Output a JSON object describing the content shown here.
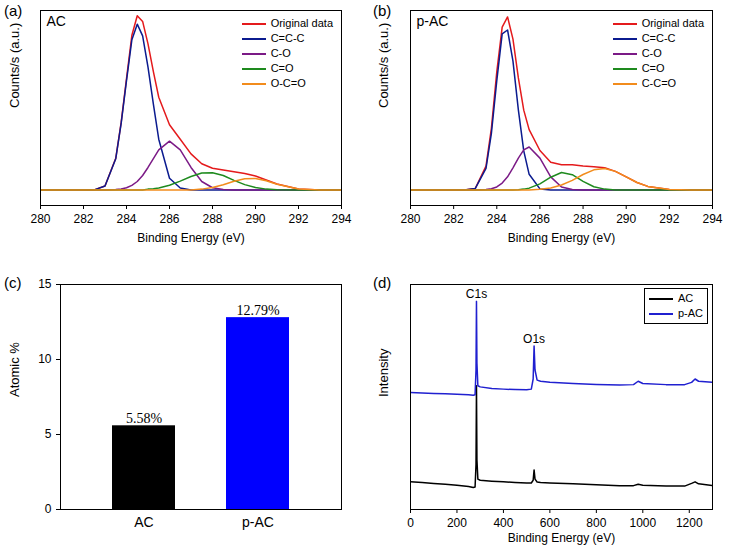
{
  "chart_data": [
    {
      "type": "line",
      "panel_label": "(a)",
      "title": "AC",
      "x_label": "Binding Energy (eV)",
      "y_label": "Counts/s (a.u.)",
      "x": [
        280,
        281,
        282,
        282.5,
        283,
        283.5,
        283.75,
        284,
        284.25,
        284.5,
        284.75,
        285,
        285.25,
        285.5,
        286,
        286.5,
        287,
        287.5,
        288,
        288.5,
        289,
        289.5,
        290,
        290.5,
        291,
        292,
        293,
        294
      ],
      "series": [
        {
          "name": "Original data",
          "color": "#e41a1c",
          "values": [
            8,
            8,
            8,
            8,
            10,
            24.2,
            42.5,
            65.1,
            87.3,
            97.3,
            94.4,
            82.9,
            68.6,
            55.5,
            41.4,
            34,
            26.5,
            21.4,
            19.1,
            18.2,
            17.3,
            16.4,
            15.1,
            13.1,
            11,
            8.5,
            8,
            8
          ]
        },
        {
          "name": "C=C-C",
          "color": "#0b1b8f",
          "values": [
            8,
            8,
            8,
            8,
            10,
            24,
            42,
            64,
            85,
            93,
            87,
            71,
            52,
            34,
            14,
            9,
            8,
            8,
            8,
            8,
            8,
            8,
            8,
            8,
            8,
            8,
            8,
            8
          ]
        },
        {
          "name": "C-O",
          "color": "#7b1a86",
          "values": [
            8,
            8,
            8,
            8,
            8,
            8.2,
            8.5,
            9.1,
            10.3,
            12.3,
            15.4,
            19.5,
            24,
            28.5,
            33,
            28.5,
            19.5,
            12.3,
            9.1,
            8.2,
            8,
            8,
            8,
            8,
            8,
            8,
            8,
            8
          ]
        },
        {
          "name": "C=O",
          "color": "#1e8a1e",
          "values": [
            8,
            8,
            8,
            8,
            8,
            8,
            8,
            8,
            8,
            8,
            8,
            8.4,
            8.6,
            9,
            10.4,
            12.5,
            14.9,
            16.7,
            16.8,
            15.4,
            12.9,
            10.7,
            9.2,
            8.4,
            8.1,
            8,
            8,
            8
          ]
        },
        {
          "name": "O-C=O",
          "color": "#f28c1c",
          "values": [
            8,
            8,
            8,
            8,
            8,
            8,
            8,
            8,
            8,
            8,
            8,
            8,
            8,
            8,
            8,
            8,
            8,
            8.4,
            9.2,
            10.6,
            12.4,
            13.7,
            13.9,
            12.7,
            10.9,
            8.5,
            8,
            8
          ]
        }
      ],
      "xlim": [
        280,
        294
      ],
      "xticks": [
        280,
        282,
        284,
        286,
        288,
        290,
        292,
        294
      ],
      "ylim": [
        0,
        100
      ],
      "yticks": [],
      "tick_labels": "x",
      "legend": "top-right"
    },
    {
      "type": "line",
      "panel_label": "(b)",
      "title": "p-AC",
      "x_label": "Binding Energy (eV)",
      "y_label": "Counts/s (a.u.)",
      "x": [
        280,
        281,
        282,
        282.5,
        283,
        283.5,
        283.75,
        284,
        284.25,
        284.5,
        284.75,
        285,
        285.25,
        285.5,
        286,
        286.5,
        287,
        287.5,
        288,
        288.5,
        289,
        289.5,
        290,
        290.5,
        291,
        292,
        293,
        294
      ],
      "series": [
        {
          "name": "Original data",
          "color": "#e41a1c",
          "values": [
            8,
            8,
            8,
            8,
            8.7,
            20.2,
            39.6,
            68.5,
            91.5,
            96.7,
            85.3,
            65.4,
            48.9,
            38.9,
            28.2,
            22.2,
            20.9,
            20.9,
            20.3,
            19.9,
            19.4,
            17.5,
            14.7,
            11.8,
            9.8,
            8.2,
            8,
            8
          ]
        },
        {
          "name": "C=C-C",
          "color": "#0b1b8f",
          "values": [
            8,
            8,
            8,
            8,
            8.7,
            19,
            37,
            64,
            88,
            90,
            74,
            49,
            28,
            16,
            8.5,
            8,
            8,
            8,
            8,
            8,
            8,
            8,
            8,
            8,
            8,
            8,
            8,
            8
          ]
        },
        {
          "name": "C-O",
          "color": "#7b1a86",
          "values": [
            8,
            8,
            8,
            8,
            8,
            8.2,
            8.6,
            9.5,
            11.5,
            14.7,
            19.3,
            24.3,
            28.5,
            30,
            24.3,
            14.7,
            9.5,
            8.2,
            8,
            8,
            8,
            8,
            8,
            8,
            8,
            8,
            8,
            8
          ]
        },
        {
          "name": "C=O",
          "color": "#1e8a1e",
          "values": [
            8,
            8,
            8,
            8,
            8,
            8,
            8,
            8,
            8,
            8,
            8,
            8.1,
            8.4,
            8.9,
            11.1,
            14.5,
            16.9,
            15.8,
            12.4,
            9.6,
            8.4,
            8,
            8,
            8,
            8,
            8,
            8,
            8
          ]
        },
        {
          "name": "C-C=O",
          "color": "#f28c1c",
          "values": [
            8,
            8,
            8,
            8,
            8,
            8,
            8,
            8,
            8,
            8,
            8,
            8,
            8,
            8,
            8.3,
            9,
            10.5,
            12.9,
            15.9,
            18.3,
            19,
            17.5,
            14.7,
            11.8,
            9.8,
            8.2,
            8,
            8
          ]
        }
      ],
      "xlim": [
        280,
        294
      ],
      "xticks": [
        280,
        282,
        284,
        286,
        288,
        290,
        292,
        294
      ],
      "ylim": [
        0,
        100
      ],
      "yticks": [],
      "tick_labels": "x",
      "legend": "top-right"
    },
    {
      "type": "bar",
      "panel_label": "(c)",
      "y_label": "Atomic %",
      "categories": [
        "AC",
        "p-AC"
      ],
      "values": [
        5.58,
        12.79
      ],
      "value_labels": [
        "5.58%",
        "12.79%"
      ],
      "colors": [
        "#000000",
        "#0000ff"
      ],
      "ylim": [
        0,
        15
      ],
      "yticks": [
        0,
        5,
        10,
        15
      ],
      "data_labels": true
    },
    {
      "type": "line",
      "panel_label": "(d)",
      "x_label": "Binding Energy (eV)",
      "y_label": "Intensity",
      "x": [
        0,
        50,
        100,
        150,
        200,
        250,
        270,
        278,
        282,
        284,
        286,
        290,
        300,
        350,
        400,
        450,
        500,
        520,
        528,
        532,
        536,
        545,
        560,
        600,
        700,
        800,
        900,
        960,
        980,
        1000,
        1100,
        1180,
        1210,
        1225,
        1240,
        1300
      ],
      "series": [
        {
          "name": "AC",
          "color": "#000000",
          "values": [
            12.3,
            12,
            11.6,
            11.2,
            10.8,
            10.2,
            9.8,
            10,
            20,
            55,
            22,
            13.5,
            13,
            12.6,
            12.3,
            12,
            11.8,
            11.8,
            13,
            17.6,
            13.5,
            12.2,
            12,
            11.8,
            11.4,
            11,
            10.6,
            10.6,
            11.2,
            10.8,
            10.4,
            10.4,
            11.6,
            12.3,
            11.4,
            10.6
          ]
        },
        {
          "name": "p-AC",
          "color": "#2020d0",
          "values": [
            52,
            51.8,
            51.6,
            51.4,
            51.2,
            51,
            50.8,
            51,
            62,
            92.5,
            65,
            55,
            54.5,
            53.8,
            53.5,
            53.3,
            53.2,
            53.5,
            58,
            72.7,
            62,
            57.5,
            57,
            56.6,
            56,
            55.6,
            55.3,
            55.5,
            57,
            56,
            55.5,
            55.5,
            56.5,
            58,
            57,
            56.5
          ]
        }
      ],
      "annotations": [
        {
          "text": "C1s",
          "x": 284,
          "y": 92.5
        },
        {
          "text": "O1s",
          "x": 532,
          "y": 72.7
        }
      ],
      "xlim": [
        0,
        1300
      ],
      "xticks": [
        0,
        200,
        400,
        600,
        800,
        1000,
        1200
      ],
      "ylim": [
        0,
        100
      ],
      "yticks": [],
      "tick_labels": "x",
      "legend": "top-right"
    }
  ]
}
